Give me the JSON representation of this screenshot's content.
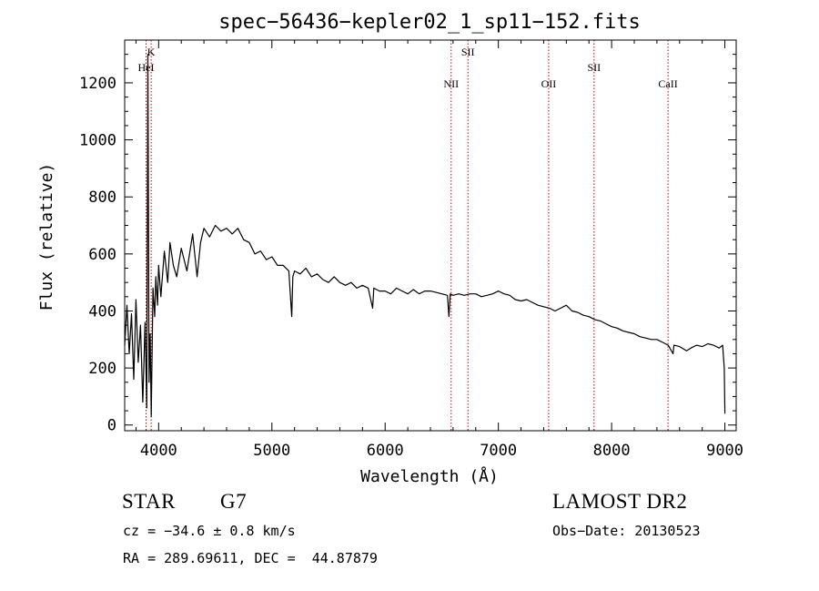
{
  "chart_data": {
    "type": "line",
    "title": "spec−56436−kepler02_1_sp11−152.fits",
    "xlabel": "Wavelength (Å)",
    "ylabel": "Flux (relative)",
    "xlim": [
      3700,
      9100
    ],
    "ylim": [
      -20,
      1350
    ],
    "xticks": [
      4000,
      5000,
      6000,
      7000,
      8000,
      9000
    ],
    "xtick_labels": [
      "4000",
      "5000",
      "6000",
      "7000",
      "8000",
      "9000"
    ],
    "yticks": [
      0,
      200,
      400,
      600,
      800,
      1000,
      1200
    ],
    "ytick_labels": [
      "0",
      "200",
      "400",
      "600",
      "800",
      "1000",
      "1200"
    ],
    "series": [
      {
        "color": "#000000",
        "x": [
          3700,
          3720,
          3740,
          3760,
          3780,
          3800,
          3820,
          3840,
          3860,
          3880,
          3895,
          3905,
          3915,
          3925,
          3935,
          3950,
          3965,
          3975,
          3990,
          4000,
          4020,
          4050,
          4080,
          4100,
          4130,
          4160,
          4200,
          4250,
          4300,
          4340,
          4370,
          4400,
          4450,
          4500,
          4550,
          4600,
          4650,
          4700,
          4750,
          4800,
          4850,
          4900,
          4950,
          5000,
          5050,
          5100,
          5150,
          5175,
          5185,
          5200,
          5250,
          5300,
          5350,
          5400,
          5450,
          5500,
          5550,
          5600,
          5650,
          5700,
          5750,
          5800,
          5850,
          5890,
          5900,
          5950,
          6000,
          6050,
          6100,
          6150,
          6200,
          6250,
          6300,
          6350,
          6400,
          6450,
          6500,
          6550,
          6563,
          6575,
          6600,
          6650,
          6700,
          6750,
          6800,
          6850,
          6900,
          6950,
          7000,
          7050,
          7100,
          7150,
          7200,
          7250,
          7300,
          7350,
          7400,
          7450,
          7500,
          7550,
          7600,
          7650,
          7700,
          7750,
          7800,
          7850,
          7900,
          7950,
          8000,
          8050,
          8100,
          8150,
          8200,
          8250,
          8300,
          8350,
          8400,
          8450,
          8500,
          8542,
          8550,
          8600,
          8662,
          8700,
          8750,
          8800,
          8850,
          8900,
          8950,
          8980,
          8995,
          9000
        ],
        "y": [
          280,
          420,
          250,
          390,
          160,
          440,
          220,
          350,
          80,
          360,
          60,
          1300,
          150,
          320,
          30,
          480,
          380,
          520,
          420,
          560,
          450,
          610,
          500,
          640,
          560,
          520,
          620,
          540,
          670,
          520,
          640,
          690,
          660,
          700,
          680,
          690,
          670,
          690,
          650,
          640,
          600,
          610,
          580,
          590,
          560,
          560,
          540,
          380,
          520,
          540,
          530,
          550,
          520,
          530,
          510,
          500,
          520,
          500,
          490,
          500,
          480,
          490,
          480,
          410,
          480,
          470,
          470,
          460,
          480,
          470,
          460,
          475,
          460,
          470,
          470,
          465,
          460,
          455,
          380,
          460,
          455,
          460,
          455,
          460,
          460,
          450,
          455,
          460,
          470,
          460,
          455,
          440,
          435,
          440,
          430,
          420,
          415,
          410,
          400,
          410,
          420,
          400,
          395,
          385,
          380,
          370,
          365,
          355,
          345,
          340,
          330,
          325,
          320,
          310,
          305,
          300,
          300,
          290,
          280,
          250,
          280,
          275,
          260,
          270,
          280,
          275,
          285,
          280,
          270,
          280,
          200,
          40
        ]
      }
    ],
    "lines": [
      {
        "label": "K",
        "x": 3934,
        "label_row": 0
      },
      {
        "label": "HeI",
        "x": 3889,
        "label_row": 1
      },
      {
        "label": "SII",
        "x": 6731,
        "label_row": 0
      },
      {
        "label": "NII",
        "x": 6583,
        "label_row": 2
      },
      {
        "label": "OII",
        "x": 7444,
        "label_row": 2
      },
      {
        "label": "SII",
        "x": 7845,
        "label_row": 1
      },
      {
        "label": "CaII",
        "x": 8498,
        "label_row": 2
      }
    ],
    "line_color": "#cc0000"
  },
  "info": {
    "object_class": "STAR",
    "subclass": "G7",
    "survey": "LAMOST DR2",
    "cz": "cz = −34.6 ± 0.8 km/s",
    "obs_date": "Obs−Date: 20130523",
    "coords": "RA = 289.69611, DEC =  44.87879"
  }
}
